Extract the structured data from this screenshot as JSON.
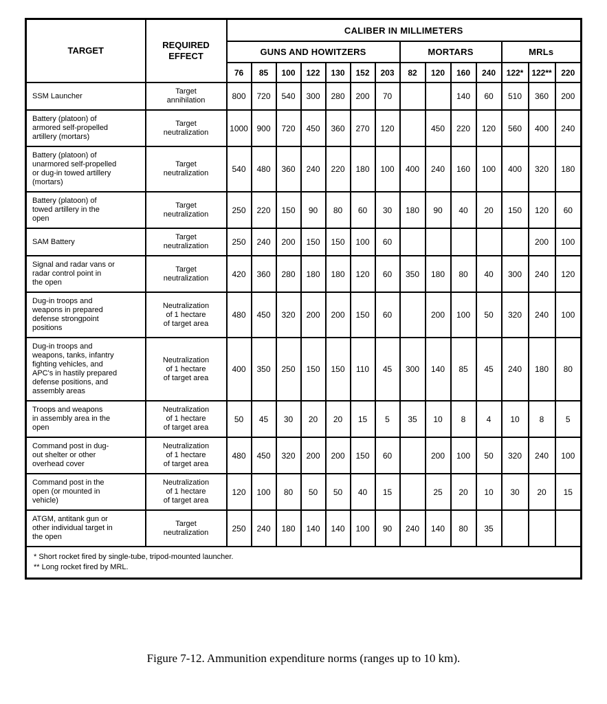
{
  "table": {
    "target_label": "TARGET",
    "effect_label": "REQUIRED\nEFFECT",
    "caliber_label": "CALIBER IN MILLIMETERS",
    "groups": [
      {
        "label": "GUNS AND HOWITZERS"
      },
      {
        "label": "MORTARS"
      },
      {
        "label": "MRLs"
      }
    ],
    "calibers": [
      "76",
      "85",
      "100",
      "122",
      "130",
      "152",
      "203",
      "82",
      "120",
      "160",
      "240",
      "122*",
      "122**",
      "220"
    ],
    "rows": [
      {
        "target": "SSM Launcher",
        "effect": "Target\nannihilation",
        "values": [
          "800",
          "720",
          "540",
          "300",
          "280",
          "200",
          "70",
          "",
          "",
          "140",
          "60",
          "510",
          "360",
          "200"
        ]
      },
      {
        "target": "Battery (platoon) of\narmored self-propelled\nartillery (mortars)",
        "effect": "Target\nneutralization",
        "values": [
          "1000",
          "900",
          "720",
          "450",
          "360",
          "270",
          "120",
          "",
          "450",
          "220",
          "120",
          "560",
          "400",
          "240"
        ]
      },
      {
        "target": "Battery (platoon) of\nunarmored self-propelled\nor dug-in towed artillery\n(mortars)",
        "effect": "Target\nneutralization",
        "values": [
          "540",
          "480",
          "360",
          "240",
          "220",
          "180",
          "100",
          "400",
          "240",
          "160",
          "100",
          "400",
          "320",
          "180"
        ]
      },
      {
        "target": "Battery (platoon) of\ntowed artillery in the\nopen",
        "effect": "Target\nneutralization",
        "values": [
          "250",
          "220",
          "150",
          "90",
          "80",
          "60",
          "30",
          "180",
          "90",
          "40",
          "20",
          "150",
          "120",
          "60"
        ]
      },
      {
        "target": "SAM Battery",
        "effect": "Target\nneutralization",
        "values": [
          "250",
          "240",
          "200",
          "150",
          "150",
          "100",
          "60",
          "",
          "",
          "",
          "",
          "",
          "200",
          "100"
        ]
      },
      {
        "target": "Signal and radar vans or\nradar control point in\nthe open",
        "effect": "Target\nneutralization",
        "values": [
          "420",
          "360",
          "280",
          "180",
          "180",
          "120",
          "60",
          "350",
          "180",
          "80",
          "40",
          "300",
          "240",
          "120"
        ]
      },
      {
        "target": "Dug-in troops and\nweapons in prepared\ndefense strongpoint\npositions",
        "effect": "Neutralization\nof 1 hectare\nof target area",
        "values": [
          "480",
          "450",
          "320",
          "200",
          "200",
          "150",
          "60",
          "",
          "200",
          "100",
          "50",
          "320",
          "240",
          "100"
        ]
      },
      {
        "target": "Dug-in troops and\nweapons, tanks, infantry\nfighting vehicles, and\nAPC's in hastily prepared\ndefense positions, and\nassembly areas",
        "effect": "Neutralization\nof 1 hectare\nof target area",
        "values": [
          "400",
          "350",
          "250",
          "150",
          "150",
          "110",
          "45",
          "300",
          "140",
          "85",
          "45",
          "240",
          "180",
          "80"
        ]
      },
      {
        "target": "Troops and weapons\nin assembly area in the\nopen",
        "effect": "Neutralization\nof 1 hectare\nof target area",
        "values": [
          "50",
          "45",
          "30",
          "20",
          "20",
          "15",
          "5",
          "35",
          "10",
          "8",
          "4",
          "10",
          "8",
          "5"
        ]
      },
      {
        "target": "Command post in dug-\nout shelter or other\noverhead cover",
        "effect": "Neutralization\nof 1 hectare\nof target area",
        "values": [
          "480",
          "450",
          "320",
          "200",
          "200",
          "150",
          "60",
          "",
          "200",
          "100",
          "50",
          "320",
          "240",
          "100"
        ]
      },
      {
        "target": "Command post in the\nopen (or mounted in\nvehicle)",
        "effect": "Neutralization\nof 1 hectare\nof target area",
        "values": [
          "120",
          "100",
          "80",
          "50",
          "50",
          "40",
          "15",
          "",
          "25",
          "20",
          "10",
          "30",
          "20",
          "15"
        ]
      },
      {
        "target": "ATGM, antitank gun or\nother individual target in\nthe open",
        "effect": "Target\nneutralization",
        "values": [
          "250",
          "240",
          "180",
          "140",
          "140",
          "100",
          "90",
          "240",
          "140",
          "80",
          "35",
          "",
          "",
          ""
        ]
      }
    ],
    "footnotes": [
      "* Short rocket fired by single-tube, tripod-mounted launcher.",
      "** Long rocket fired by MRL."
    ]
  },
  "caption": "Figure 7-12. Ammunition expenditure norms (ranges up to 10 km)."
}
